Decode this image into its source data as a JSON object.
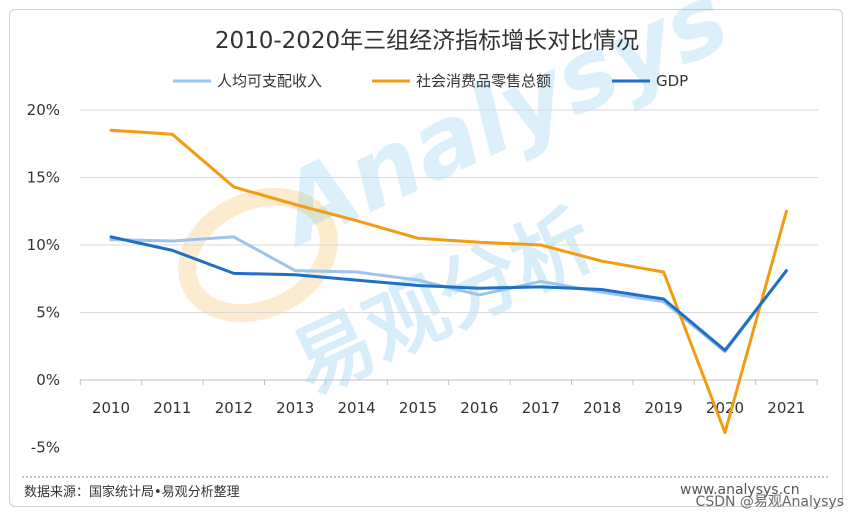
{
  "chart_data": {
    "type": "line",
    "title": "2010-2020年三组经济指标增长对比情况",
    "categories": [
      "2010",
      "2011",
      "2012",
      "2013",
      "2014",
      "2015",
      "2016",
      "2017",
      "2018",
      "2019",
      "2020",
      "2021"
    ],
    "yticks": [
      "20%",
      "15%",
      "10%",
      "5%",
      "0%",
      "-5%"
    ],
    "ylim": [
      -5,
      20
    ],
    "series": [
      {
        "name": "人均可支配收入",
        "color": "#9dc3ef",
        "values": [
          10.4,
          10.3,
          10.6,
          8.1,
          8.0,
          7.4,
          6.3,
          7.3,
          6.5,
          5.8,
          2.1,
          8.1
        ]
      },
      {
        "name": "社会消费品零售总额",
        "color": "#f39c12",
        "values": [
          18.5,
          18.2,
          14.3,
          13.0,
          11.8,
          10.5,
          10.2,
          10.0,
          8.8,
          8.0,
          -3.9,
          12.5
        ]
      },
      {
        "name": "GDP",
        "color": "#1f6fc5",
        "values": [
          10.6,
          9.6,
          7.9,
          7.8,
          7.4,
          7.0,
          6.8,
          6.9,
          6.7,
          6.0,
          2.2,
          8.1
        ]
      }
    ]
  },
  "source": "数据来源：国家统计局•易观分析整理",
  "watermark": {
    "brand": "Analysys",
    "cn": "易观分析",
    "site": "www.analysys.cn"
  },
  "credit": "CSDN @易观Analysys"
}
